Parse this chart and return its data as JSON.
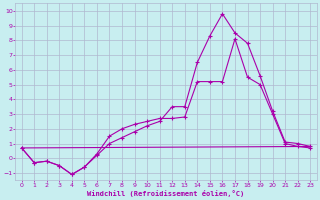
{
  "background_color": "#c8eef0",
  "grid_color": "#b0b8d0",
  "line_color": "#aa00aa",
  "xlabel": "Windchill (Refroidissement éolien,°C)",
  "xlim": [
    -0.5,
    23.5
  ],
  "ylim": [
    -1.5,
    10.5
  ],
  "yticks": [
    -1,
    0,
    1,
    2,
    3,
    4,
    5,
    6,
    7,
    8,
    9,
    10
  ],
  "xticks": [
    0,
    1,
    2,
    3,
    4,
    5,
    6,
    7,
    8,
    9,
    10,
    11,
    12,
    13,
    14,
    15,
    16,
    17,
    18,
    19,
    20,
    21,
    22,
    23
  ],
  "series1_x": [
    0,
    1,
    2,
    3,
    4,
    5,
    6,
    7,
    8,
    9,
    10,
    11,
    12,
    13,
    14,
    15,
    16,
    17,
    18,
    19,
    20,
    21,
    22,
    23
  ],
  "series1_y": [
    0.7,
    -0.3,
    -0.2,
    -0.5,
    -1.1,
    -0.6,
    0.2,
    1.0,
    1.4,
    1.8,
    2.2,
    2.5,
    3.5,
    3.5,
    6.5,
    8.3,
    9.8,
    8.5,
    7.8,
    5.6,
    3.2,
    1.1,
    1.0,
    0.8
  ],
  "series2_x": [
    0,
    1,
    2,
    3,
    4,
    5,
    6,
    7,
    8,
    9,
    10,
    11,
    12,
    13,
    14,
    15,
    16,
    17,
    18,
    19,
    20,
    21,
    22,
    23
  ],
  "series2_y": [
    0.7,
    -0.3,
    -0.2,
    -0.5,
    -1.1,
    -0.6,
    0.3,
    1.5,
    2.0,
    2.3,
    2.5,
    2.7,
    2.7,
    2.8,
    5.2,
    5.2,
    5.2,
    8.1,
    5.5,
    5.0,
    3.0,
    1.0,
    0.8,
    0.7
  ],
  "series3_x": [
    0,
    23
  ],
  "series3_y": [
    0.7,
    0.8
  ]
}
